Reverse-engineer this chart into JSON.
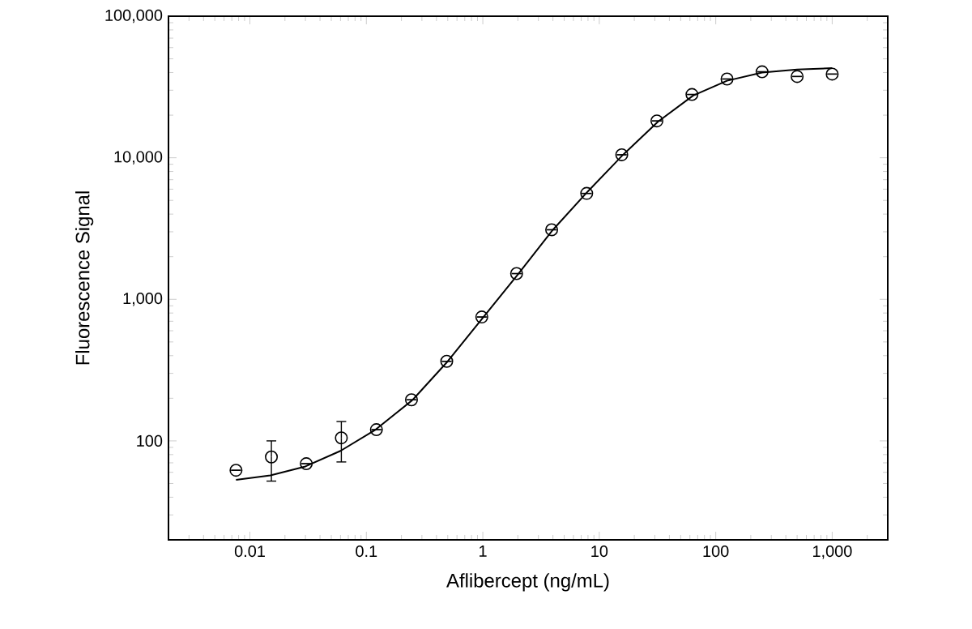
{
  "chart_data": {
    "type": "scatter",
    "xlabel": "Aflibercept (ng/mL)",
    "ylabel": "Fluorescence Signal",
    "log": "xy",
    "xlim": [
      0.002,
      3000
    ],
    "ylim": [
      20,
      100000
    ],
    "xticks": [
      0.01,
      0.1,
      1,
      10,
      100,
      {
        "value": 1000,
        "label": "1,000"
      }
    ],
    "yticks": [
      {
        "value": 100,
        "label": "100"
      },
      {
        "value": 1000,
        "label": "1,000"
      },
      {
        "value": 10000,
        "label": "10,000"
      },
      {
        "value": 100000,
        "label": "100,000"
      }
    ],
    "series": [
      {
        "color": "#000000",
        "marker": "circle",
        "x": [
          0.0076,
          0.0153,
          0.0305,
          0.061,
          0.122,
          0.244,
          0.49,
          0.98,
          1.95,
          3.9,
          7.8,
          15.6,
          31.25,
          62.5,
          125,
          250,
          500,
          1000
        ],
        "values": [
          62,
          77,
          69,
          105,
          120,
          195,
          365,
          750,
          1520,
          3100,
          5600,
          10500,
          18200,
          28000,
          36000,
          40500,
          37500,
          39000
        ],
        "errors": [
          null,
          [
            52,
            100
          ],
          null,
          [
            71,
            137
          ],
          null,
          null,
          null,
          null,
          null,
          null,
          null,
          null,
          null,
          null,
          null,
          null,
          null,
          null
        ]
      },
      {
        "type": "line",
        "color": "#000000",
        "marker": "none",
        "line_style": "solid",
        "x": [
          0.0076,
          0.015,
          0.03,
          0.06,
          0.12,
          0.25,
          0.5,
          1,
          2,
          4,
          8,
          16,
          32,
          64,
          125,
          250,
          500,
          1000
        ],
        "values": [
          53,
          57,
          66,
          85,
          120,
          195,
          365,
          740,
          1500,
          3100,
          5800,
          10500,
          18000,
          27500,
          35000,
          40000,
          42000,
          43000
        ]
      }
    ]
  }
}
